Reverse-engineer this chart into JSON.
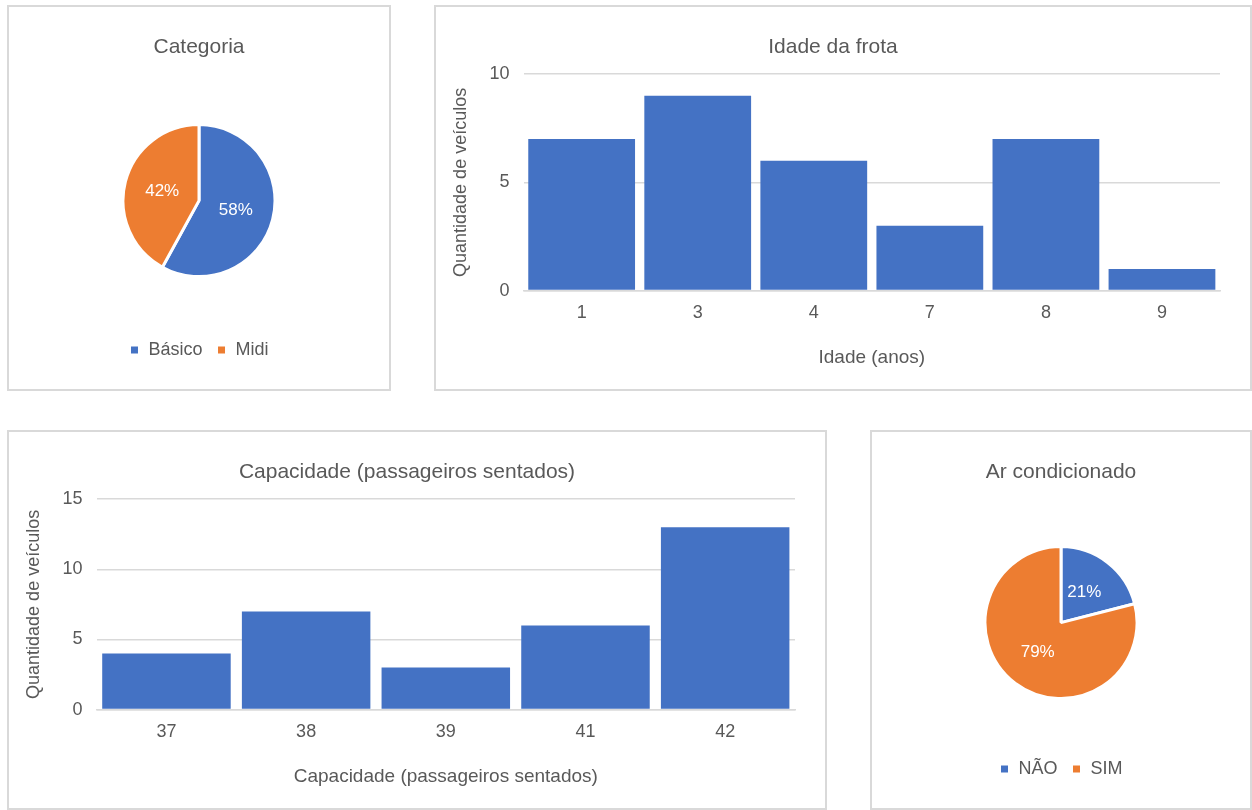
{
  "chart_data": [
    {
      "type": "pie",
      "title": "Categoria",
      "categories": [
        "Básico",
        "Midi"
      ],
      "values": [
        58,
        42
      ],
      "colors": [
        "#4472c4",
        "#ed7d31"
      ],
      "value_labels": [
        "58%",
        "42%"
      ],
      "legend": "bottom"
    },
    {
      "type": "bar",
      "title": "Idade da frota",
      "xlabel": "Idade (anos)",
      "ylabel": "Quantidade de veículos",
      "categories": [
        "1",
        "3",
        "4",
        "7",
        "8",
        "9"
      ],
      "values": [
        7,
        9,
        6,
        3,
        7,
        1
      ],
      "color": "#4472c4",
      "ylim": [
        0,
        10
      ],
      "yticks": [
        0,
        5,
        10
      ],
      "grid": "y"
    },
    {
      "type": "bar",
      "title": "Capacidade (passageiros sentados)",
      "xlabel": "Capacidade (passageiros sentados)",
      "ylabel": "Quantidade de veículos",
      "categories": [
        "37",
        "38",
        "39",
        "41",
        "42"
      ],
      "values": [
        4,
        7,
        3,
        6,
        13
      ],
      "color": "#4472c4",
      "ylim": [
        0,
        15
      ],
      "yticks": [
        0,
        5,
        10,
        15
      ],
      "grid": "y"
    },
    {
      "type": "pie",
      "title": "Ar condicionado",
      "categories": [
        "NÃO",
        "SIM"
      ],
      "values": [
        21,
        79
      ],
      "colors": [
        "#4472c4",
        "#ed7d31"
      ],
      "value_labels": [
        "21%",
        "79%"
      ],
      "legend": "bottom"
    }
  ]
}
